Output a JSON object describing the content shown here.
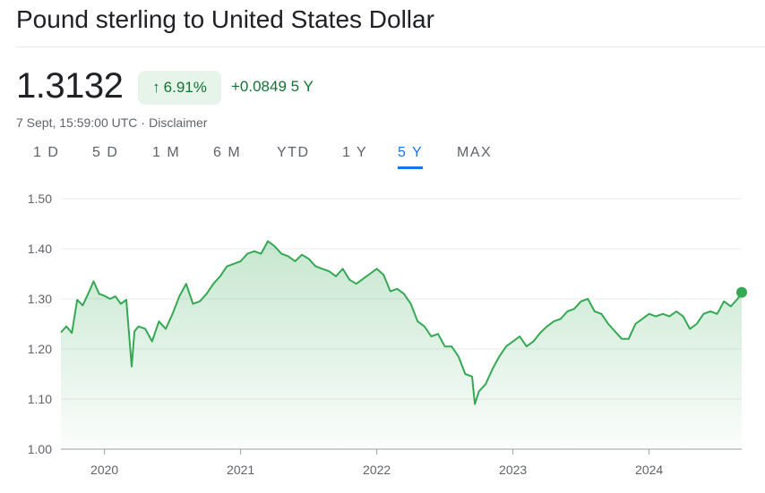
{
  "header": {
    "title": "Pound sterling to United States Dollar"
  },
  "quote": {
    "price": "1.3132",
    "percent_change": "6.91%",
    "abs_change": "+0.0849",
    "period": "5 Y",
    "timestamp": "7 Sept, 15:59:00 UTC",
    "separator": "·",
    "disclaimer": "Disclaimer",
    "colors": {
      "positive": "#137333",
      "positive_bg": "#e6f4ea",
      "line": "#34a853"
    }
  },
  "tabs": [
    {
      "label": "1 D",
      "active": false
    },
    {
      "label": "5 D",
      "active": false
    },
    {
      "label": "1 M",
      "active": false
    },
    {
      "label": "6 M",
      "active": false
    },
    {
      "label": "YTD",
      "active": false
    },
    {
      "label": "1 Y",
      "active": false
    },
    {
      "label": "5 Y",
      "active": true
    },
    {
      "label": "MAX",
      "active": false
    }
  ],
  "chart_data": {
    "type": "area",
    "title": "",
    "xlabel": "",
    "ylabel": "",
    "ylim": [
      1.0,
      1.5
    ],
    "yticks": [
      "1.50",
      "1.40",
      "1.30",
      "1.20",
      "1.10",
      "1.00"
    ],
    "xticks": [
      "2020",
      "2021",
      "2022",
      "2023",
      "2024"
    ],
    "grid": true,
    "legend": "none",
    "series": [
      {
        "x": [
          2019.68,
          2019.72,
          2019.76,
          2019.8,
          2019.84,
          2019.88,
          2019.92,
          2019.96,
          2020.0,
          2020.04,
          2020.08,
          2020.12,
          2020.16,
          2020.2,
          2020.22,
          2020.25,
          2020.3,
          2020.35,
          2020.4,
          2020.45,
          2020.5,
          2020.55,
          2020.6,
          2020.65,
          2020.7,
          2020.75,
          2020.8,
          2020.85,
          2020.9,
          2020.95,
          2021.0,
          2021.05,
          2021.1,
          2021.15,
          2021.2,
          2021.25,
          2021.3,
          2021.35,
          2021.4,
          2021.45,
          2021.5,
          2021.55,
          2021.6,
          2021.65,
          2021.7,
          2021.75,
          2021.8,
          2021.85,
          2021.9,
          2021.95,
          2022.0,
          2022.05,
          2022.1,
          2022.15,
          2022.2,
          2022.25,
          2022.3,
          2022.35,
          2022.4,
          2022.45,
          2022.5,
          2022.55,
          2022.6,
          2022.65,
          2022.7,
          2022.72,
          2022.75,
          2022.8,
          2022.85,
          2022.9,
          2022.95,
          2023.0,
          2023.05,
          2023.1,
          2023.15,
          2023.2,
          2023.25,
          2023.3,
          2023.35,
          2023.4,
          2023.45,
          2023.5,
          2023.55,
          2023.6,
          2023.65,
          2023.7,
          2023.75,
          2023.8,
          2023.85,
          2023.9,
          2023.95,
          2024.0,
          2024.05,
          2024.1,
          2024.15,
          2024.2,
          2024.25,
          2024.3,
          2024.35,
          2024.4,
          2024.45,
          2024.5,
          2024.55,
          2024.6,
          2024.65,
          2024.68
        ],
        "values": [
          1.233,
          1.245,
          1.232,
          1.298,
          1.287,
          1.31,
          1.335,
          1.31,
          1.306,
          1.3,
          1.305,
          1.29,
          1.298,
          1.165,
          1.235,
          1.245,
          1.24,
          1.215,
          1.255,
          1.24,
          1.27,
          1.305,
          1.33,
          1.29,
          1.295,
          1.31,
          1.33,
          1.345,
          1.365,
          1.37,
          1.375,
          1.39,
          1.395,
          1.39,
          1.415,
          1.405,
          1.39,
          1.385,
          1.375,
          1.388,
          1.38,
          1.365,
          1.36,
          1.355,
          1.345,
          1.36,
          1.338,
          1.33,
          1.34,
          1.35,
          1.36,
          1.348,
          1.315,
          1.32,
          1.31,
          1.29,
          1.255,
          1.245,
          1.225,
          1.23,
          1.205,
          1.205,
          1.185,
          1.15,
          1.145,
          1.09,
          1.115,
          1.13,
          1.16,
          1.185,
          1.205,
          1.215,
          1.225,
          1.205,
          1.215,
          1.232,
          1.245,
          1.255,
          1.26,
          1.275,
          1.28,
          1.295,
          1.3,
          1.275,
          1.27,
          1.25,
          1.235,
          1.22,
          1.22,
          1.25,
          1.26,
          1.27,
          1.265,
          1.27,
          1.265,
          1.275,
          1.265,
          1.24,
          1.25,
          1.27,
          1.275,
          1.27,
          1.295,
          1.285,
          1.3,
          1.313
        ]
      }
    ]
  }
}
